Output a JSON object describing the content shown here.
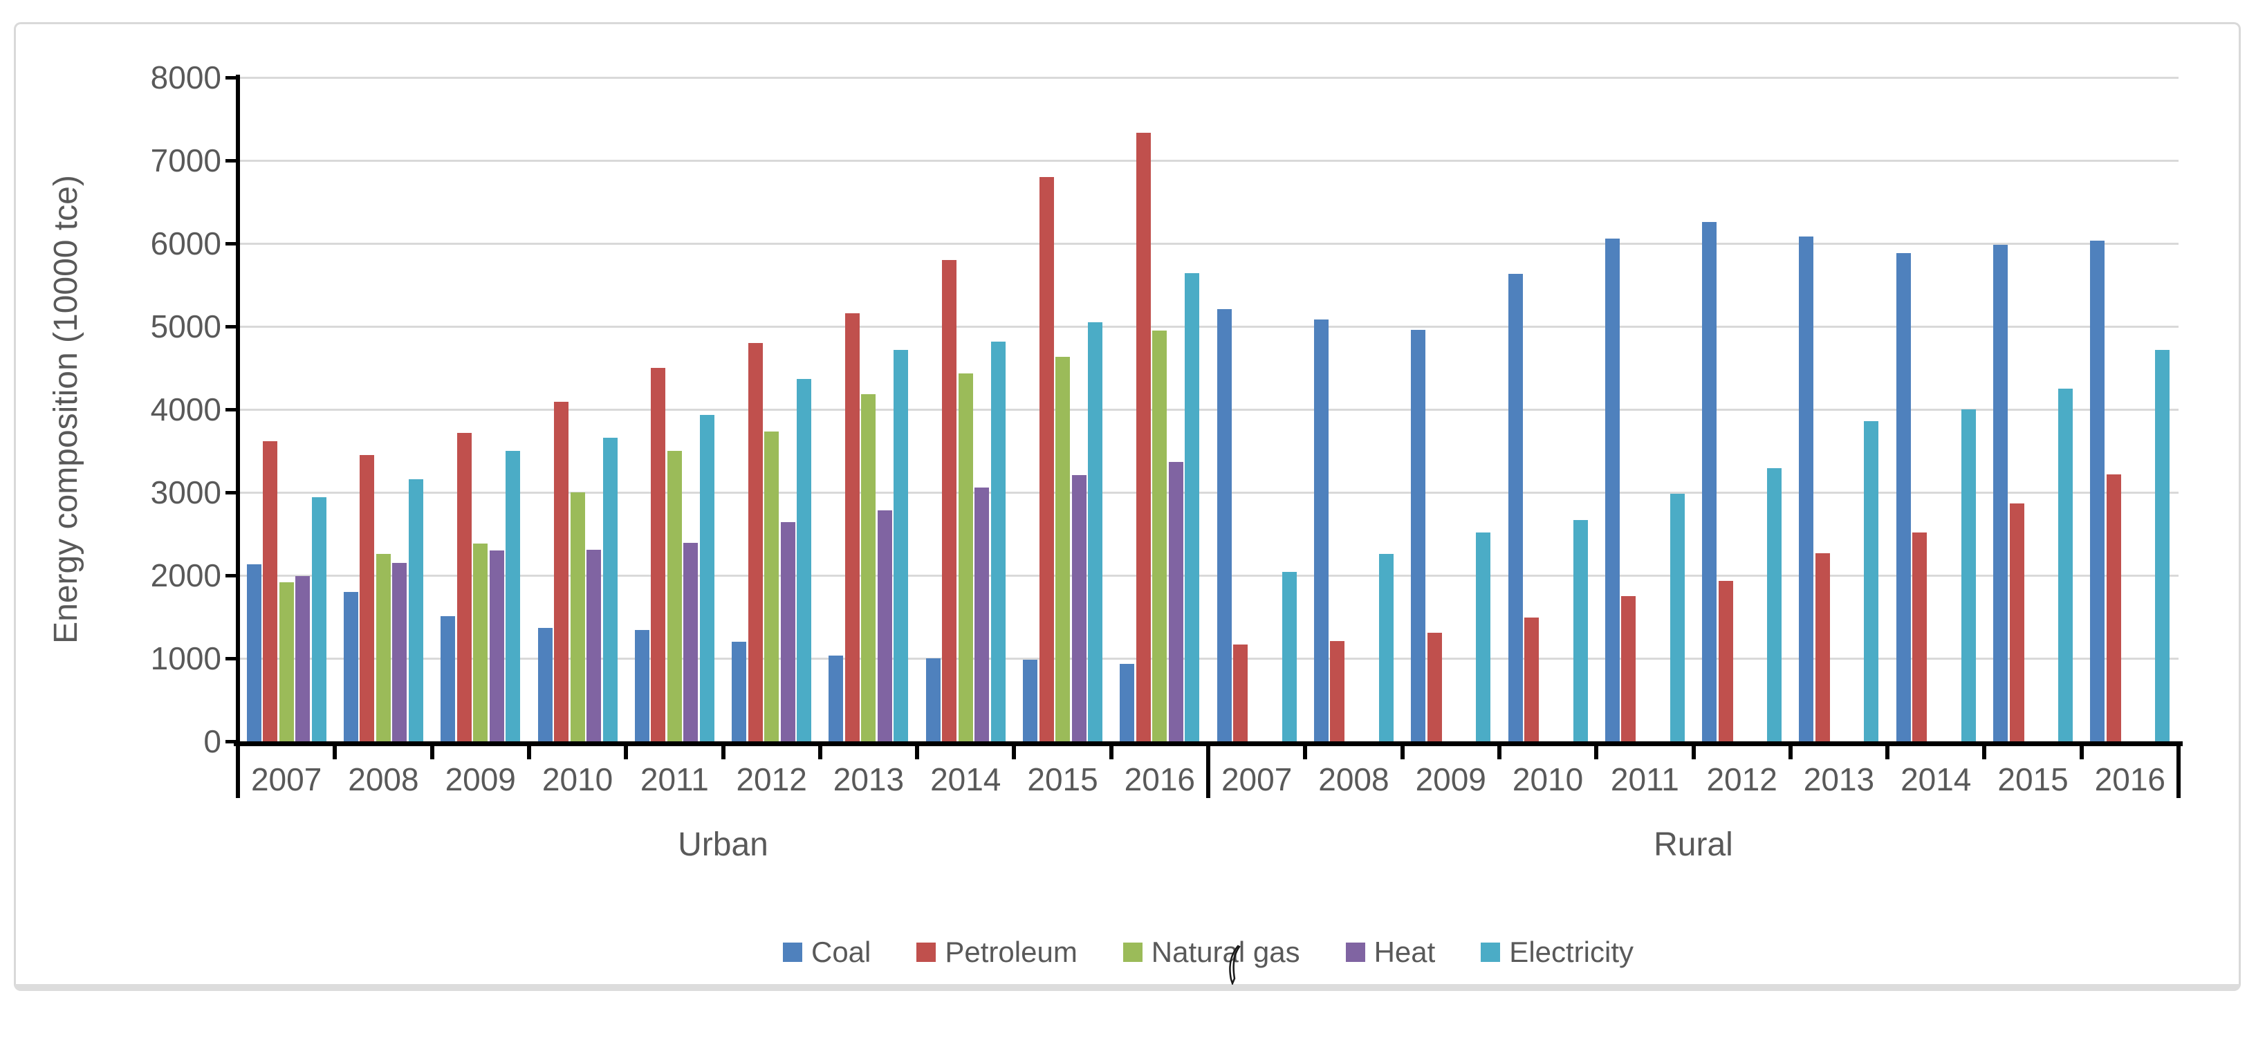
{
  "chart_data": {
    "type": "bar",
    "title": "",
    "ylabel": "Energy composition (10000 tce)",
    "xlabel": "",
    "ylim": [
      0,
      8000
    ],
    "ytick_step": 1000,
    "yticks": [
      0,
      1000,
      2000,
      3000,
      4000,
      5000,
      6000,
      7000,
      8000
    ],
    "grid": true,
    "legend_position": "bottom",
    "sections": [
      {
        "label": "Urban",
        "categories": [
          "2007",
          "2008",
          "2009",
          "2010",
          "2011",
          "2012",
          "2013",
          "2014",
          "2015",
          "2016"
        ]
      },
      {
        "label": "Rural",
        "categories": [
          "2007",
          "2008",
          "2009",
          "2010",
          "2011",
          "2012",
          "2013",
          "2014",
          "2015",
          "2016"
        ]
      }
    ],
    "series": [
      {
        "name": "Coal",
        "color": "#4F81BD",
        "values": {
          "Urban": [
            2130,
            1800,
            1510,
            1370,
            1340,
            1200,
            1030,
            1000,
            980,
            930
          ],
          "Rural": [
            5210,
            5080,
            4960,
            5630,
            6060,
            6260,
            6080,
            5880,
            5980,
            6030
          ]
        }
      },
      {
        "name": "Petroleum",
        "color": "#C0504D",
        "values": {
          "Urban": [
            3620,
            3450,
            3720,
            4090,
            4500,
            4800,
            5160,
            5800,
            6800,
            7330
          ],
          "Rural": [
            1170,
            1210,
            1310,
            1490,
            1750,
            1930,
            2270,
            2520,
            2870,
            3220
          ]
        }
      },
      {
        "name": "Natural gas",
        "color": "#9BBB59",
        "values": {
          "Urban": [
            1920,
            2260,
            2380,
            3000,
            3500,
            3730,
            4180,
            4430,
            4630,
            4950
          ],
          "Rural": [
            0,
            0,
            0,
            0,
            0,
            0,
            0,
            0,
            0,
            0
          ]
        }
      },
      {
        "name": "Heat",
        "color": "#8064A2",
        "values": {
          "Urban": [
            1990,
            2150,
            2300,
            2310,
            2390,
            2640,
            2780,
            3060,
            3210,
            3370
          ],
          "Rural": [
            0,
            0,
            0,
            0,
            0,
            0,
            0,
            0,
            0,
            0
          ]
        }
      },
      {
        "name": "Electricity",
        "color": "#4BACC6",
        "values": {
          "Urban": [
            2940,
            3160,
            3500,
            3660,
            3930,
            4370,
            4720,
            4820,
            5050,
            5640
          ],
          "Rural": [
            2040,
            2260,
            2520,
            2670,
            2980,
            3290,
            3860,
            4000,
            4250,
            4720
          ]
        }
      }
    ]
  },
  "colors": {
    "background": "#FFFFFF",
    "border": "#D9D9D9",
    "gridline": "#D9D9D9",
    "axis": "#000000",
    "text": "#595959"
  }
}
